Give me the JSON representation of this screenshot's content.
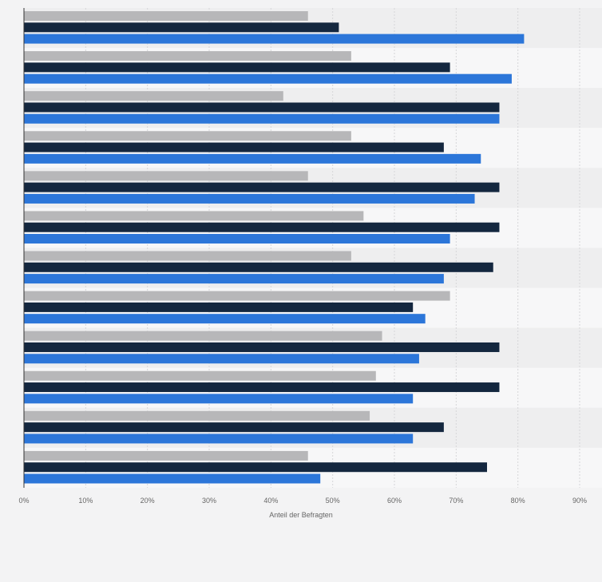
{
  "chart_data": {
    "type": "bar",
    "orientation": "horizontal",
    "title": "",
    "xlabel": "Anteil der Befragten",
    "ylabel": "",
    "xlim": [
      0,
      90
    ],
    "x_tick_labels": [
      "0%",
      "10%",
      "20%",
      "30%",
      "40%",
      "50%",
      "60%",
      "70%",
      "80%",
      "90%"
    ],
    "grid": true,
    "legend": "none",
    "categories": [
      "",
      "",
      "",
      "",
      "",
      "",
      "",
      "",
      "",
      "",
      "",
      ""
    ],
    "series": [
      {
        "color": "#b7b7b9",
        "values": [
          46,
          53,
          42,
          53,
          46,
          55,
          53,
          69,
          58,
          57,
          56,
          46
        ]
      },
      {
        "color": "#14273f",
        "values": [
          51,
          69,
          77,
          68,
          77,
          77,
          76,
          63,
          77,
          77,
          68,
          75
        ]
      },
      {
        "color": "#2c76d9",
        "values": [
          81,
          79,
          77,
          74,
          73,
          69,
          68,
          65,
          64,
          63,
          63,
          48
        ]
      }
    ]
  }
}
